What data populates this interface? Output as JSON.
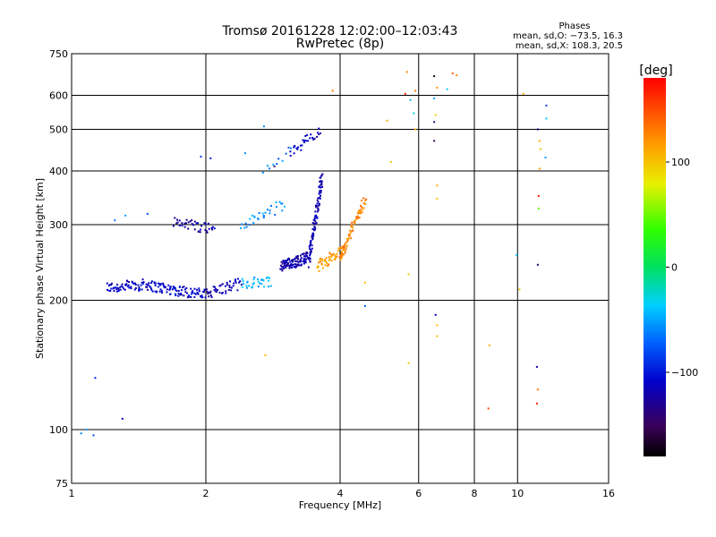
{
  "chart_data": {
    "type": "scatter",
    "title": "Tromsø 20161228 12:02:00–12:03:43",
    "subtitle": "RwPretec (8p)",
    "xlabel": "Frequency [MHz]",
    "ylabel": "Stationary phase Virtual Height [km]",
    "xscale": "log",
    "yscale": "log",
    "xlim": [
      1,
      16
    ],
    "ylim": [
      75,
      750
    ],
    "x_ticks": [
      1,
      2,
      4,
      6,
      8,
      10,
      16
    ],
    "y_ticks": [
      75,
      100,
      200,
      300,
      400,
      500,
      600,
      750
    ],
    "grid": true,
    "stats": {
      "heading": "Phases",
      "line_o": "mean, sd,O: −73.5, 16.3",
      "line_x": "mean, sd,X: 108.3, 20.5"
    },
    "colorbar": {
      "label": "[deg]",
      "range": [
        -180,
        180
      ],
      "ticks": [
        -100,
        0,
        100
      ],
      "tick_labels": [
        "−100",
        "0",
        "100"
      ]
    },
    "traces": [
      {
        "x": [
          1.2,
          1.5
        ],
        "y": [
          214,
          218
        ],
        "phase": -112,
        "points": 70
      },
      {
        "x": [
          1.5,
          2.0
        ],
        "y": [
          216,
          206
        ],
        "phase": -108,
        "points": 90
      },
      {
        "x": [
          2.0,
          2.4
        ],
        "y": [
          208,
          219
        ],
        "phase": -118,
        "points": 45
      },
      {
        "x": [
          2.4,
          2.8
        ],
        "y": [
          219,
          222
        ],
        "phase": -48,
        "points": 30
      },
      {
        "x": [
          1.7,
          2.1
        ],
        "y": [
          305,
          293
        ],
        "phase": -118,
        "points": 40
      },
      {
        "x": [
          2.4,
          3.0
        ],
        "y": [
          298,
          335
        ],
        "phase": -55,
        "points": 30
      },
      {
        "x": [
          2.7,
          3.1
        ],
        "y": [
          395,
          448
        ],
        "phase": -62,
        "points": 10
      },
      {
        "x": [
          3.1,
          3.6
        ],
        "y": [
          445,
          492
        ],
        "phase": -112,
        "points": 30
      },
      {
        "x": [
          2.95,
          3.4
        ],
        "y": [
          240,
          252
        ],
        "phase": -120,
        "points": 110
      },
      {
        "x": [
          3.4,
          3.65
        ],
        "y": [
          245,
          390
        ],
        "phase": -118,
        "points": 100
      },
      {
        "x": [
          3.55,
          4.1
        ],
        "y": [
          240,
          262
        ],
        "phase": 118,
        "points": 55
      },
      {
        "x": [
          4.0,
          4.55
        ],
        "y": [
          252,
          345
        ],
        "phase": 128,
        "points": 70
      }
    ],
    "points": [
      {
        "x": 1.13,
        "y": 132,
        "phase": -95
      },
      {
        "x": 1.05,
        "y": 98,
        "phase": -60
      },
      {
        "x": 1.08,
        "y": 100,
        "phase": -50
      },
      {
        "x": 1.12,
        "y": 97,
        "phase": -80
      },
      {
        "x": 1.3,
        "y": 106,
        "phase": -110
      },
      {
        "x": 1.25,
        "y": 307,
        "phase": -65
      },
      {
        "x": 1.32,
        "y": 315,
        "phase": -55
      },
      {
        "x": 1.48,
        "y": 318,
        "phase": -80
      },
      {
        "x": 1.95,
        "y": 432,
        "phase": -85
      },
      {
        "x": 2.05,
        "y": 428,
        "phase": -95
      },
      {
        "x": 2.45,
        "y": 440,
        "phase": -58
      },
      {
        "x": 2.7,
        "y": 508,
        "phase": -55
      },
      {
        "x": 2.85,
        "y": 410,
        "phase": -140
      },
      {
        "x": 3.85,
        "y": 615,
        "phase": 130
      },
      {
        "x": 5.1,
        "y": 524,
        "phase": 110
      },
      {
        "x": 5.2,
        "y": 420,
        "phase": 100
      },
      {
        "x": 4.55,
        "y": 220,
        "phase": 100
      },
      {
        "x": 4.55,
        "y": 194,
        "phase": -75
      },
      {
        "x": 2.72,
        "y": 149,
        "phase": 105
      },
      {
        "x": 5.6,
        "y": 605,
        "phase": 170
      },
      {
        "x": 5.65,
        "y": 680,
        "phase": 128
      },
      {
        "x": 5.75,
        "y": 585,
        "phase": -45
      },
      {
        "x": 5.85,
        "y": 545,
        "phase": -30
      },
      {
        "x": 5.9,
        "y": 500,
        "phase": 110
      },
      {
        "x": 5.9,
        "y": 615,
        "phase": 130
      },
      {
        "x": 5.7,
        "y": 230,
        "phase": 100
      },
      {
        "x": 5.7,
        "y": 143,
        "phase": 100
      },
      {
        "x": 6.5,
        "y": 665,
        "phase": -175
      },
      {
        "x": 6.5,
        "y": 470,
        "phase": -150
      },
      {
        "x": 6.5,
        "y": 520,
        "phase": -140
      },
      {
        "x": 6.55,
        "y": 540,
        "phase": 95
      },
      {
        "x": 6.5,
        "y": 590,
        "phase": -50
      },
      {
        "x": 6.6,
        "y": 625,
        "phase": 120
      },
      {
        "x": 6.6,
        "y": 370,
        "phase": 110
      },
      {
        "x": 6.6,
        "y": 345,
        "phase": 100
      },
      {
        "x": 6.55,
        "y": 185,
        "phase": -110
      },
      {
        "x": 6.6,
        "y": 175,
        "phase": 105
      },
      {
        "x": 6.6,
        "y": 165,
        "phase": 100
      },
      {
        "x": 6.95,
        "y": 620,
        "phase": -40
      },
      {
        "x": 7.15,
        "y": 675,
        "phase": 140
      },
      {
        "x": 7.3,
        "y": 668,
        "phase": 125
      },
      {
        "x": 8.65,
        "y": 157,
        "phase": 105
      },
      {
        "x": 8.6,
        "y": 112,
        "phase": 150
      },
      {
        "x": 9.95,
        "y": 255,
        "phase": -40
      },
      {
        "x": 10.1,
        "y": 212,
        "phase": 100
      },
      {
        "x": 10.3,
        "y": 605,
        "phase": 110
      },
      {
        "x": 11.1,
        "y": 500,
        "phase": -130
      },
      {
        "x": 11.2,
        "y": 470,
        "phase": 110
      },
      {
        "x": 11.25,
        "y": 450,
        "phase": 100
      },
      {
        "x": 11.2,
        "y": 405,
        "phase": 120
      },
      {
        "x": 11.15,
        "y": 350,
        "phase": 170
      },
      {
        "x": 11.15,
        "y": 327,
        "phase": 50
      },
      {
        "x": 11.1,
        "y": 242,
        "phase": -135
      },
      {
        "x": 11.05,
        "y": 140,
        "phase": -120
      },
      {
        "x": 11.1,
        "y": 124,
        "phase": 130
      },
      {
        "x": 11.05,
        "y": 115,
        "phase": 165
      },
      {
        "x": 11.6,
        "y": 568,
        "phase": -85
      },
      {
        "x": 11.6,
        "y": 530,
        "phase": -40
      },
      {
        "x": 11.55,
        "y": 430,
        "phase": -50
      }
    ]
  }
}
